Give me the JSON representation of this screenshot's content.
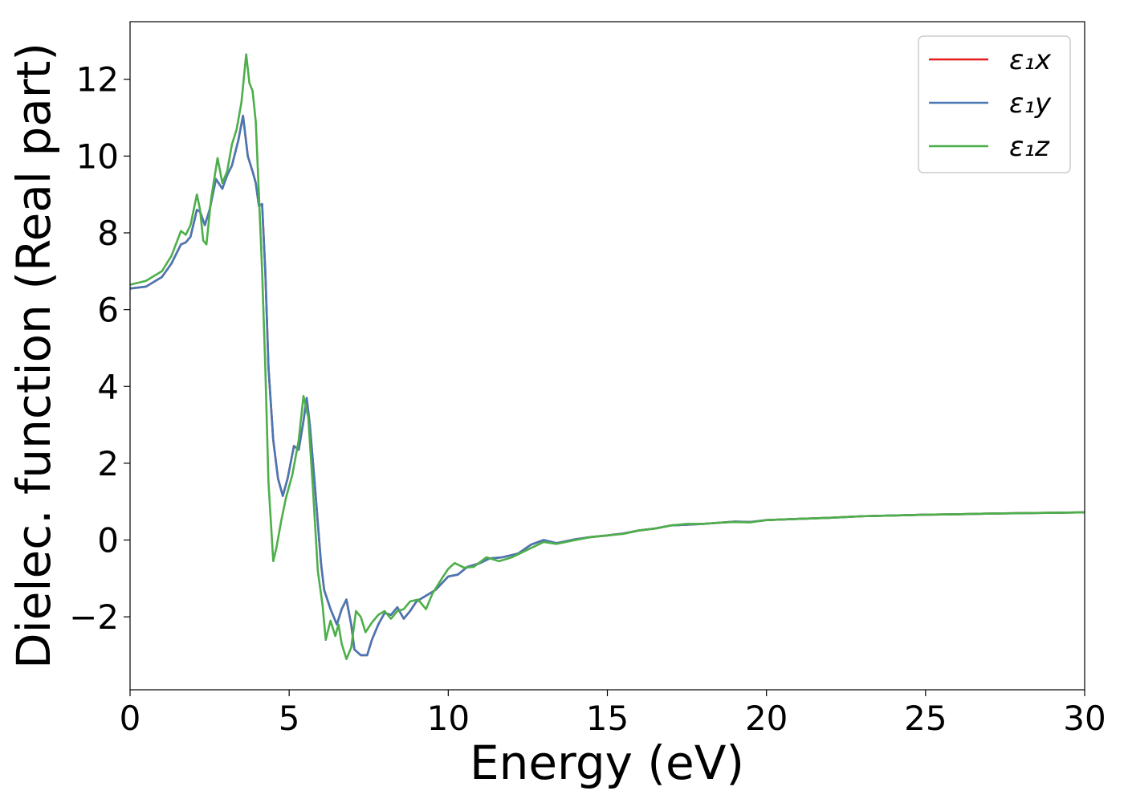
{
  "chart_data": {
    "type": "line",
    "title": "",
    "xlabel": "Energy (eV)",
    "ylabel": "Dielec. function (Real part)",
    "xlim": [
      0,
      30
    ],
    "ylim": [
      -3.9,
      13.5
    ],
    "xticks": [
      0,
      5,
      10,
      15,
      20,
      25,
      30
    ],
    "xtick_labels": [
      "0",
      "5",
      "10",
      "15",
      "20",
      "25",
      "30"
    ],
    "yticks": [
      -2,
      0,
      2,
      4,
      6,
      8,
      10,
      12
    ],
    "ytick_labels": [
      "−2",
      "0",
      "2",
      "4",
      "6",
      "8",
      "10",
      "12"
    ],
    "grid": false,
    "legend_position": "top-right",
    "series": [
      {
        "name": "ε₁x",
        "color": "#e41a1c",
        "points": [
          [
            0,
            6.55
          ],
          [
            0.5,
            6.6
          ],
          [
            1.0,
            6.85
          ],
          [
            1.3,
            7.2
          ],
          [
            1.6,
            7.7
          ],
          [
            1.75,
            7.75
          ],
          [
            1.9,
            7.9
          ],
          [
            2.1,
            8.6
          ],
          [
            2.2,
            8.55
          ],
          [
            2.35,
            8.2
          ],
          [
            2.5,
            8.6
          ],
          [
            2.7,
            9.4
          ],
          [
            2.9,
            9.15
          ],
          [
            3.05,
            9.5
          ],
          [
            3.2,
            9.75
          ],
          [
            3.4,
            10.4
          ],
          [
            3.55,
            11.05
          ],
          [
            3.7,
            10.0
          ],
          [
            3.85,
            9.6
          ],
          [
            3.95,
            9.3
          ],
          [
            4.05,
            8.7
          ],
          [
            4.15,
            8.75
          ],
          [
            4.25,
            7.0
          ],
          [
            4.35,
            4.5
          ],
          [
            4.5,
            2.6
          ],
          [
            4.65,
            1.6
          ],
          [
            4.8,
            1.15
          ],
          [
            4.95,
            1.6
          ],
          [
            5.15,
            2.45
          ],
          [
            5.3,
            2.35
          ],
          [
            5.45,
            3.1
          ],
          [
            5.55,
            3.7
          ],
          [
            5.65,
            3.0
          ],
          [
            5.8,
            1.5
          ],
          [
            6.0,
            -0.6
          ],
          [
            6.1,
            -1.3
          ],
          [
            6.3,
            -1.8
          ],
          [
            6.5,
            -2.2
          ],
          [
            6.65,
            -1.8
          ],
          [
            6.8,
            -1.55
          ],
          [
            6.95,
            -2.2
          ],
          [
            7.05,
            -2.85
          ],
          [
            7.25,
            -3.0
          ],
          [
            7.45,
            -3.0
          ],
          [
            7.6,
            -2.6
          ],
          [
            7.8,
            -2.2
          ],
          [
            8.0,
            -1.9
          ],
          [
            8.2,
            -1.95
          ],
          [
            8.4,
            -1.75
          ],
          [
            8.6,
            -2.05
          ],
          [
            8.8,
            -1.85
          ],
          [
            9.0,
            -1.6
          ],
          [
            9.3,
            -1.45
          ],
          [
            9.6,
            -1.3
          ],
          [
            10.0,
            -0.95
          ],
          [
            10.3,
            -0.9
          ],
          [
            10.6,
            -0.7
          ],
          [
            11.0,
            -0.6
          ],
          [
            11.3,
            -0.48
          ],
          [
            11.7,
            -0.45
          ],
          [
            12.2,
            -0.35
          ],
          [
            12.6,
            -0.12
          ],
          [
            13.0,
            0.0
          ],
          [
            13.4,
            -0.08
          ],
          [
            14.0,
            0.02
          ],
          [
            14.5,
            0.08
          ],
          [
            15.0,
            0.12
          ],
          [
            15.5,
            0.17
          ],
          [
            16.0,
            0.25
          ],
          [
            16.5,
            0.3
          ],
          [
            17.0,
            0.38
          ],
          [
            17.5,
            0.4
          ],
          [
            18.0,
            0.42
          ],
          [
            18.5,
            0.45
          ],
          [
            19.0,
            0.48
          ],
          [
            19.5,
            0.47
          ],
          [
            20.0,
            0.52
          ],
          [
            21.0,
            0.55
          ],
          [
            22.0,
            0.58
          ],
          [
            23.0,
            0.62
          ],
          [
            24.0,
            0.64
          ],
          [
            25.0,
            0.66
          ],
          [
            26.0,
            0.67
          ],
          [
            27.0,
            0.69
          ],
          [
            28.0,
            0.7
          ],
          [
            29.0,
            0.71
          ],
          [
            30.0,
            0.72
          ]
        ]
      },
      {
        "name": "ε₁y",
        "color": "#4878b4",
        "points": [
          [
            0,
            6.55
          ],
          [
            0.5,
            6.6
          ],
          [
            1.0,
            6.85
          ],
          [
            1.3,
            7.2
          ],
          [
            1.6,
            7.7
          ],
          [
            1.75,
            7.75
          ],
          [
            1.9,
            7.9
          ],
          [
            2.1,
            8.6
          ],
          [
            2.2,
            8.55
          ],
          [
            2.35,
            8.2
          ],
          [
            2.5,
            8.6
          ],
          [
            2.7,
            9.4
          ],
          [
            2.9,
            9.15
          ],
          [
            3.05,
            9.5
          ],
          [
            3.2,
            9.75
          ],
          [
            3.4,
            10.4
          ],
          [
            3.55,
            11.05
          ],
          [
            3.7,
            10.0
          ],
          [
            3.85,
            9.6
          ],
          [
            3.95,
            9.3
          ],
          [
            4.05,
            8.7
          ],
          [
            4.15,
            8.75
          ],
          [
            4.25,
            7.0
          ],
          [
            4.35,
            4.5
          ],
          [
            4.5,
            2.6
          ],
          [
            4.65,
            1.6
          ],
          [
            4.8,
            1.15
          ],
          [
            4.95,
            1.6
          ],
          [
            5.15,
            2.45
          ],
          [
            5.3,
            2.35
          ],
          [
            5.45,
            3.1
          ],
          [
            5.55,
            3.7
          ],
          [
            5.65,
            3.0
          ],
          [
            5.8,
            1.5
          ],
          [
            6.0,
            -0.6
          ],
          [
            6.1,
            -1.3
          ],
          [
            6.3,
            -1.8
          ],
          [
            6.5,
            -2.2
          ],
          [
            6.65,
            -1.8
          ],
          [
            6.8,
            -1.55
          ],
          [
            6.95,
            -2.2
          ],
          [
            7.05,
            -2.85
          ],
          [
            7.25,
            -3.0
          ],
          [
            7.45,
            -3.0
          ],
          [
            7.6,
            -2.6
          ],
          [
            7.8,
            -2.2
          ],
          [
            8.0,
            -1.9
          ],
          [
            8.2,
            -1.95
          ],
          [
            8.4,
            -1.75
          ],
          [
            8.6,
            -2.05
          ],
          [
            8.8,
            -1.85
          ],
          [
            9.0,
            -1.6
          ],
          [
            9.3,
            -1.45
          ],
          [
            9.6,
            -1.3
          ],
          [
            10.0,
            -0.95
          ],
          [
            10.3,
            -0.9
          ],
          [
            10.6,
            -0.7
          ],
          [
            11.0,
            -0.6
          ],
          [
            11.3,
            -0.48
          ],
          [
            11.7,
            -0.45
          ],
          [
            12.2,
            -0.35
          ],
          [
            12.6,
            -0.12
          ],
          [
            13.0,
            0.0
          ],
          [
            13.4,
            -0.08
          ],
          [
            14.0,
            0.02
          ],
          [
            14.5,
            0.08
          ],
          [
            15.0,
            0.12
          ],
          [
            15.5,
            0.17
          ],
          [
            16.0,
            0.25
          ],
          [
            16.5,
            0.3
          ],
          [
            17.0,
            0.38
          ],
          [
            17.5,
            0.4
          ],
          [
            18.0,
            0.42
          ],
          [
            18.5,
            0.45
          ],
          [
            19.0,
            0.48
          ],
          [
            19.5,
            0.47
          ],
          [
            20.0,
            0.52
          ],
          [
            21.0,
            0.55
          ],
          [
            22.0,
            0.58
          ],
          [
            23.0,
            0.62
          ],
          [
            24.0,
            0.64
          ],
          [
            25.0,
            0.66
          ],
          [
            26.0,
            0.67
          ],
          [
            27.0,
            0.69
          ],
          [
            28.0,
            0.7
          ],
          [
            29.0,
            0.71
          ],
          [
            30.0,
            0.72
          ]
        ]
      },
      {
        "name": "ε₁z",
        "color": "#4daf4a",
        "points": [
          [
            0,
            6.65
          ],
          [
            0.5,
            6.75
          ],
          [
            1.0,
            7.0
          ],
          [
            1.3,
            7.4
          ],
          [
            1.6,
            8.05
          ],
          [
            1.75,
            7.95
          ],
          [
            1.9,
            8.2
          ],
          [
            2.1,
            9.0
          ],
          [
            2.2,
            8.6
          ],
          [
            2.3,
            7.8
          ],
          [
            2.4,
            7.7
          ],
          [
            2.55,
            8.9
          ],
          [
            2.75,
            9.95
          ],
          [
            2.9,
            9.3
          ],
          [
            3.05,
            9.6
          ],
          [
            3.2,
            10.3
          ],
          [
            3.35,
            10.7
          ],
          [
            3.5,
            11.4
          ],
          [
            3.65,
            12.65
          ],
          [
            3.75,
            11.9
          ],
          [
            3.85,
            11.7
          ],
          [
            3.95,
            10.9
          ],
          [
            4.05,
            9.0
          ],
          [
            4.15,
            7.0
          ],
          [
            4.25,
            4.5
          ],
          [
            4.35,
            1.5
          ],
          [
            4.5,
            -0.55
          ],
          [
            4.6,
            -0.2
          ],
          [
            4.75,
            0.5
          ],
          [
            4.9,
            1.1
          ],
          [
            5.1,
            1.7
          ],
          [
            5.3,
            2.6
          ],
          [
            5.45,
            3.75
          ],
          [
            5.6,
            3.2
          ],
          [
            5.75,
            1.3
          ],
          [
            5.9,
            -0.8
          ],
          [
            6.05,
            -1.7
          ],
          [
            6.15,
            -2.6
          ],
          [
            6.3,
            -2.1
          ],
          [
            6.45,
            -2.5
          ],
          [
            6.55,
            -2.2
          ],
          [
            6.65,
            -2.7
          ],
          [
            6.8,
            -3.1
          ],
          [
            6.95,
            -2.8
          ],
          [
            7.1,
            -1.85
          ],
          [
            7.25,
            -2.0
          ],
          [
            7.4,
            -2.4
          ],
          [
            7.6,
            -2.15
          ],
          [
            7.8,
            -1.95
          ],
          [
            8.0,
            -1.85
          ],
          [
            8.2,
            -2.05
          ],
          [
            8.4,
            -1.85
          ],
          [
            8.6,
            -1.8
          ],
          [
            8.8,
            -1.6
          ],
          [
            9.05,
            -1.55
          ],
          [
            9.3,
            -1.8
          ],
          [
            9.5,
            -1.4
          ],
          [
            9.8,
            -1.0
          ],
          [
            10.0,
            -0.75
          ],
          [
            10.2,
            -0.6
          ],
          [
            10.5,
            -0.72
          ],
          [
            10.8,
            -0.7
          ],
          [
            11.2,
            -0.45
          ],
          [
            11.6,
            -0.55
          ],
          [
            12.0,
            -0.45
          ],
          [
            12.5,
            -0.25
          ],
          [
            13.0,
            -0.05
          ],
          [
            13.4,
            -0.1
          ],
          [
            14.0,
            0.0
          ],
          [
            14.5,
            0.08
          ],
          [
            15.0,
            0.12
          ],
          [
            15.5,
            0.16
          ],
          [
            16.0,
            0.25
          ],
          [
            16.5,
            0.3
          ],
          [
            17.0,
            0.38
          ],
          [
            17.5,
            0.42
          ],
          [
            18.0,
            0.42
          ],
          [
            18.5,
            0.45
          ],
          [
            19.0,
            0.47
          ],
          [
            19.5,
            0.46
          ],
          [
            20.0,
            0.52
          ],
          [
            21.0,
            0.55
          ],
          [
            22.0,
            0.58
          ],
          [
            23.0,
            0.62
          ],
          [
            24.0,
            0.64
          ],
          [
            25.0,
            0.66
          ],
          [
            26.0,
            0.67
          ],
          [
            27.0,
            0.69
          ],
          [
            28.0,
            0.7
          ],
          [
            29.0,
            0.71
          ],
          [
            30.0,
            0.72
          ]
        ]
      }
    ]
  }
}
